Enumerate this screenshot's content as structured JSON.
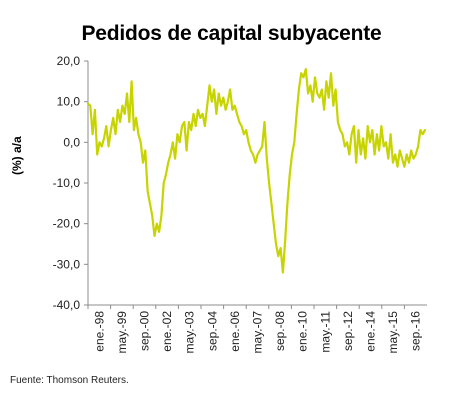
{
  "chart_data": {
    "type": "line",
    "title": "Pedidos de capital subyacente",
    "ylabel": "(%) a/a",
    "xlabel": "",
    "source": "Fuente: Thomson Reuters.",
    "ylim": [
      -40,
      20
    ],
    "yticks": [
      "20,0",
      "10,0",
      "0,0",
      "-10,0",
      "-20,0",
      "-30,0",
      "-40,0"
    ],
    "xticks": [
      "ene.-98",
      "may.-99",
      "sep.-00",
      "ene.-02",
      "may.-03",
      "sep.-04",
      "ene.-06",
      "may.-07",
      "sep.-08",
      "ene.-10",
      "may.-11",
      "sep.-12",
      "ene.-14",
      "may.-15",
      "sep.-16"
    ],
    "line_color": "#c8d400",
    "grid": false,
    "series": [
      {
        "values": [
          9.5,
          9,
          2,
          8,
          -3,
          0,
          -1,
          1,
          4,
          -1,
          3,
          6,
          2,
          8,
          5,
          9,
          7,
          12,
          5,
          15,
          3,
          6,
          2,
          0,
          -5,
          -2,
          -12,
          -15,
          -18,
          -23,
          -20,
          -22,
          -18,
          -10,
          -8,
          -5,
          -3,
          0,
          -4,
          2,
          0,
          4,
          5,
          -2,
          5,
          3,
          7,
          4,
          8,
          6,
          7,
          4,
          9,
          14,
          10,
          13,
          7,
          12,
          9,
          11,
          8,
          10,
          13,
          8,
          9,
          7,
          5,
          4,
          2,
          3,
          0,
          -2,
          -3,
          -5,
          -3,
          -2,
          -1,
          5,
          -4,
          -10,
          -15,
          -20,
          -25,
          -28,
          -26,
          -32,
          -24,
          -15,
          -8,
          -3,
          0,
          7,
          13,
          17,
          16,
          18,
          12,
          14,
          10,
          16,
          12,
          11,
          13,
          8,
          15,
          11,
          17,
          9,
          13,
          5,
          3,
          2,
          -1,
          0,
          -3,
          2,
          4,
          -5,
          3,
          -3,
          1,
          -4,
          4,
          0,
          3,
          -3,
          2,
          -2,
          4,
          -1,
          0,
          -4,
          2,
          -5,
          -3,
          -6,
          -2,
          -4,
          -6,
          -3,
          -5,
          -2,
          -4,
          -3,
          -1,
          3,
          2,
          3
        ]
      }
    ]
  }
}
